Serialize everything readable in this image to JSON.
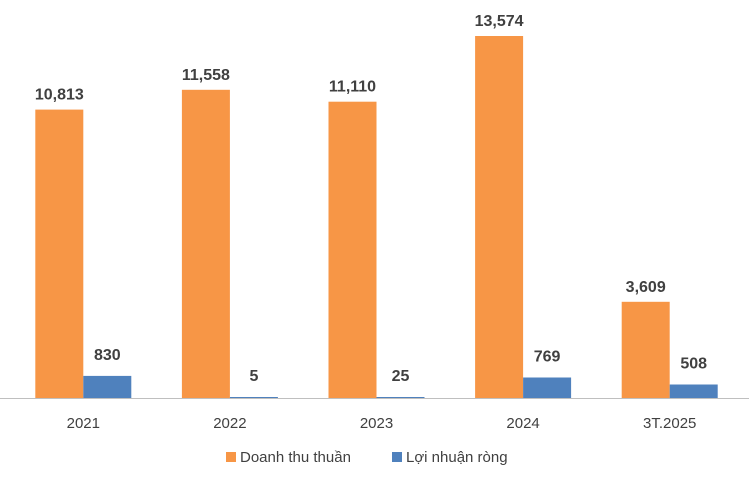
{
  "chart_data": {
    "type": "bar",
    "title": "",
    "xlabel": "",
    "ylabel": "",
    "categories": [
      "2021",
      "2022",
      "2023",
      "2024",
      "3T.2025"
    ],
    "series": [
      {
        "name": "Doanh thu thuần",
        "color": "#F79646",
        "values": [
          10813,
          11558,
          11110,
          13574,
          3609
        ],
        "labels": [
          "10,813",
          "11,558",
          "11,110",
          "13,574",
          "3,609"
        ]
      },
      {
        "name": "Lợi nhuận ròng",
        "color": "#4F81BD",
        "values": [
          830,
          5,
          25,
          769,
          508
        ],
        "labels": [
          "830",
          "5",
          "25",
          "769",
          "508"
        ]
      }
    ],
    "ylim": [
      0,
      14000
    ],
    "grid": false,
    "legend_position": "bottom",
    "axis_color": "#BFBFBF"
  }
}
